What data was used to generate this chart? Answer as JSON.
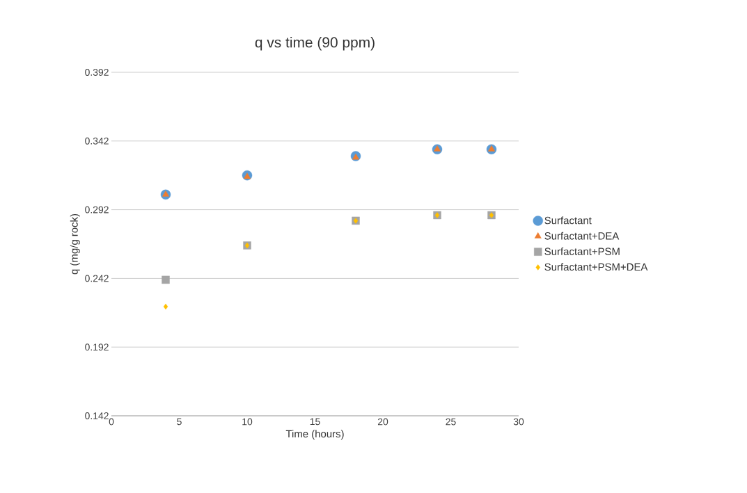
{
  "chart_data": {
    "type": "scatter",
    "title": "q vs time (90 ppm)",
    "xlabel": "Time (hours)",
    "ylabel": "q (mg/g rock)",
    "x": [
      4,
      10,
      18,
      24,
      28
    ],
    "series": [
      {
        "name": "Surfactant",
        "color": "#5b9bd5",
        "marker": "circle",
        "values": [
          0.303,
          0.317,
          0.331,
          0.336,
          0.336
        ]
      },
      {
        "name": "Surfactant+DEA",
        "color": "#ed7d31",
        "marker": "triangle",
        "values": [
          0.303,
          0.316,
          0.33,
          0.336,
          0.336
        ]
      },
      {
        "name": "Surfactant+PSM",
        "color": "#a5a5a5",
        "marker": "square",
        "values": [
          0.241,
          0.266,
          0.284,
          0.288,
          0.288
        ]
      },
      {
        "name": "Surfactant+PSM+DEA",
        "color": "#ffc000",
        "marker": "diamond",
        "values": [
          0.2215,
          0.266,
          0.284,
          0.288,
          0.288
        ]
      }
    ],
    "xlim": [
      0,
      30
    ],
    "xticks": [
      0,
      5,
      10,
      15,
      20,
      25,
      30
    ],
    "ylim": [
      0.142,
      0.392
    ],
    "yticks": [
      0.142,
      0.192,
      0.242,
      0.292,
      0.342,
      0.392
    ],
    "grid": "y",
    "legend": "right"
  }
}
